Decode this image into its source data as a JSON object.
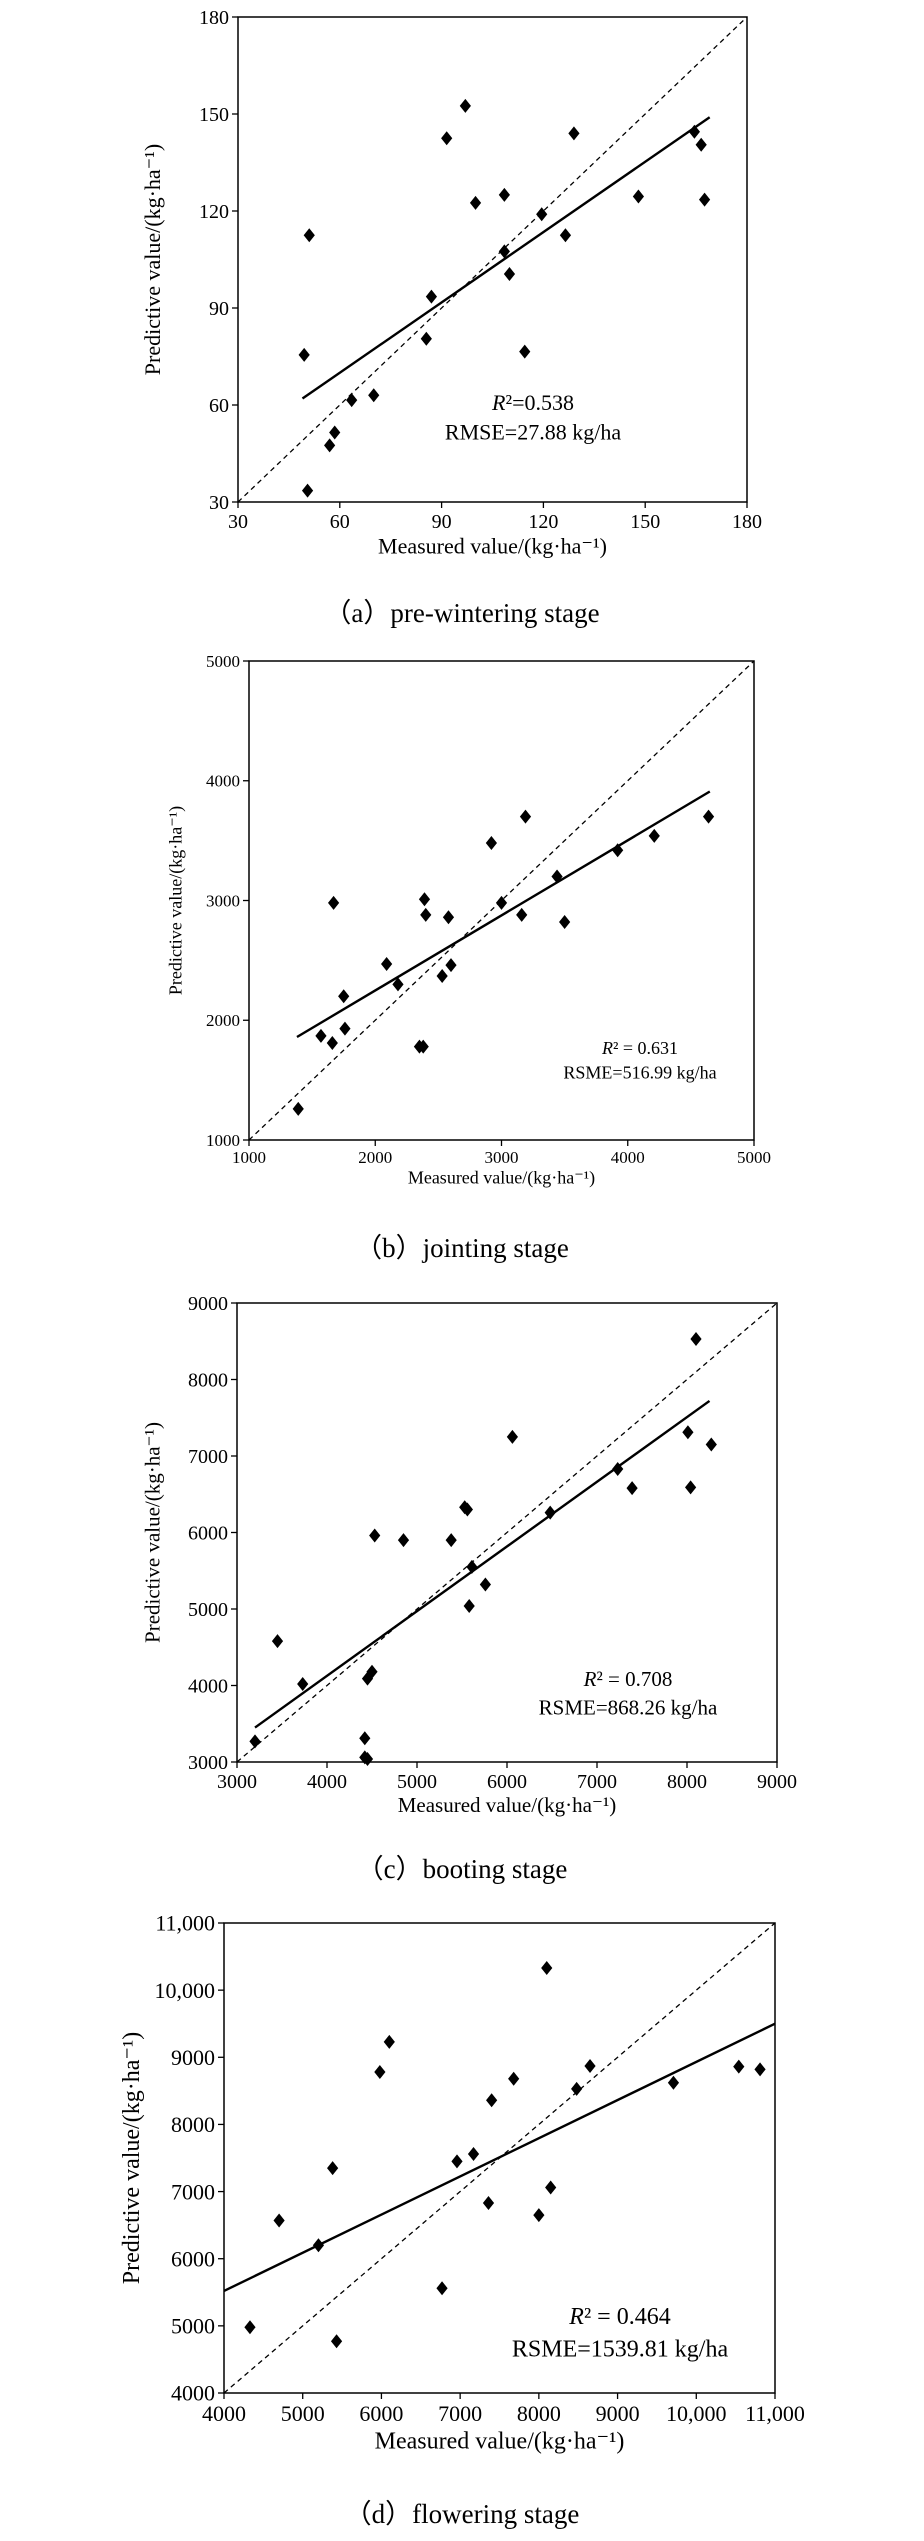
{
  "chart_data": [
    {
      "type": "scatter",
      "caption": "（a）pre-wintering stage",
      "xlabel": "Measured value/(kg·ha⁻¹)",
      "ylabel": "Predictive value/(kg·ha⁻¹)",
      "xlim": [
        30,
        180
      ],
      "ylim": [
        30,
        180
      ],
      "xticks": [
        30,
        60,
        90,
        120,
        150,
        180
      ],
      "yticks": [
        30,
        60,
        90,
        120,
        150,
        180
      ],
      "tick_labels_x": [
        "30",
        "60",
        "90",
        "120",
        "150",
        "180"
      ],
      "tick_labels_y": [
        "30",
        "60",
        "90",
        "120",
        "150",
        "180"
      ],
      "annotation_r2_label": "R",
      "annotation_r2_value": "²=0.538",
      "annotation_err": "RMSE=27.88 kg/ha",
      "fit_line": [
        [
          49,
          62
        ],
        [
          169,
          149
        ]
      ],
      "reference_line": "1:1",
      "points": [
        [
          49.5,
          75.5
        ],
        [
          50.5,
          33.5
        ],
        [
          51,
          112.5
        ],
        [
          57,
          47.5
        ],
        [
          58.5,
          51.5
        ],
        [
          63.5,
          61.5
        ],
        [
          70,
          63
        ],
        [
          85.5,
          80.5
        ],
        [
          87,
          93.5
        ],
        [
          91.5,
          142.5
        ],
        [
          97,
          152.5
        ],
        [
          100,
          122.5
        ],
        [
          108.5,
          125
        ],
        [
          108.5,
          107.5
        ],
        [
          110,
          100.5
        ],
        [
          114.5,
          76.5
        ],
        [
          119.5,
          119
        ],
        [
          126.5,
          112.5
        ],
        [
          129,
          144
        ],
        [
          148,
          124.5
        ],
        [
          164.5,
          144.5
        ],
        [
          166.5,
          140.5
        ],
        [
          167.5,
          123.5
        ]
      ]
    },
    {
      "type": "scatter",
      "caption": "（b）jointing stage",
      "xlabel": "Measured value/(kg·ha⁻¹)",
      "ylabel": "Predictive value/(kg·ha⁻¹)",
      "xlim": [
        1000,
        5000
      ],
      "ylim": [
        1000,
        5000
      ],
      "xticks": [
        1000,
        2000,
        3000,
        4000,
        5000
      ],
      "yticks": [
        1000,
        2000,
        3000,
        4000,
        5000
      ],
      "tick_labels_x": [
        "1000",
        "2000",
        "3000",
        "4000",
        "5000"
      ],
      "tick_labels_y": [
        "1000",
        "2000",
        "3000",
        "4000",
        "5000"
      ],
      "annotation_r2_label": "R",
      "annotation_r2_value": "² = 0.631",
      "annotation_err": "RSME=516.99 kg/ha",
      "fit_line": [
        [
          1380,
          1860
        ],
        [
          4650,
          3910
        ]
      ],
      "reference_line": "1:1",
      "points": [
        [
          1390,
          1260
        ],
        [
          1570,
          1870
        ],
        [
          1660,
          1810
        ],
        [
          1670,
          2980
        ],
        [
          1750,
          2200
        ],
        [
          1760,
          1930
        ],
        [
          2090,
          2470
        ],
        [
          2180,
          2300
        ],
        [
          2350,
          1780
        ],
        [
          2380,
          1780
        ],
        [
          2390,
          3010
        ],
        [
          2400,
          2880
        ],
        [
          2530,
          2370
        ],
        [
          2580,
          2860
        ],
        [
          2600,
          2460
        ],
        [
          2920,
          3480
        ],
        [
          3000,
          2980
        ],
        [
          3160,
          2880
        ],
        [
          3190,
          3700
        ],
        [
          3440,
          3200
        ],
        [
          3500,
          2820
        ],
        [
          3920,
          3420
        ],
        [
          4210,
          3540
        ],
        [
          4640,
          3700
        ]
      ]
    },
    {
      "type": "scatter",
      "caption": "（c）booting stage",
      "xlabel": "Measured value/(kg·ha⁻¹)",
      "ylabel": "Predictive value/(kg·ha⁻¹)",
      "xlim": [
        3000,
        9000
      ],
      "ylim": [
        3000,
        9000
      ],
      "xticks": [
        3000,
        4000,
        5000,
        6000,
        7000,
        8000,
        9000
      ],
      "yticks": [
        3000,
        4000,
        5000,
        6000,
        7000,
        8000,
        9000
      ],
      "tick_labels_x": [
        "3000",
        "4000",
        "5000",
        "6000",
        "7000",
        "8000",
        "9000"
      ],
      "tick_labels_y": [
        "3000",
        "4000",
        "5000",
        "6000",
        "7000",
        "8000",
        "9000"
      ],
      "annotation_r2_label": "R",
      "annotation_r2_value": "² = 0.708",
      "annotation_err": "RSME=868.26 kg/ha",
      "fit_line": [
        [
          3200,
          3450
        ],
        [
          8250,
          7720
        ]
      ],
      "reference_line": "1:1",
      "points": [
        [
          3200,
          3270
        ],
        [
          3450,
          4580
        ],
        [
          3730,
          4020
        ],
        [
          4420,
          3310
        ],
        [
          4420,
          3060
        ],
        [
          4450,
          3040
        ],
        [
          4450,
          4090
        ],
        [
          4500,
          4180
        ],
        [
          4530,
          5960
        ],
        [
          4850,
          5900
        ],
        [
          5380,
          5900
        ],
        [
          5530,
          6330
        ],
        [
          5560,
          6300
        ],
        [
          5580,
          5040
        ],
        [
          5610,
          5550
        ],
        [
          5760,
          5320
        ],
        [
          6060,
          7250
        ],
        [
          6480,
          6260
        ],
        [
          7230,
          6830
        ],
        [
          7390,
          6580
        ],
        [
          8010,
          7310
        ],
        [
          8040,
          6590
        ],
        [
          8100,
          8530
        ],
        [
          8270,
          7150
        ]
      ]
    },
    {
      "type": "scatter",
      "caption": "（d）flowering stage",
      "xlabel": "Measured value/(kg·ha⁻¹)",
      "ylabel": "Predictive value/(kg·ha⁻¹)",
      "xlim": [
        4000,
        11000
      ],
      "ylim": [
        4000,
        11000
      ],
      "xticks": [
        4000,
        5000,
        6000,
        7000,
        8000,
        9000,
        10000,
        11000
      ],
      "yticks": [
        4000,
        5000,
        6000,
        7000,
        8000,
        9000,
        10000,
        11000
      ],
      "tick_labels_x": [
        "4000",
        "5000",
        "6000",
        "7000",
        "8000",
        "9000",
        "10,000",
        "11,000"
      ],
      "tick_labels_y": [
        "4000",
        "5000",
        "6000",
        "7000",
        "8000",
        "9000",
        "10,000",
        "11,000"
      ],
      "annotation_r2_label": "R",
      "annotation_r2_value": "² = 0.464",
      "annotation_err": "RSME=1539.81 kg/ha",
      "fit_line": [
        [
          4000,
          5520
        ],
        [
          11000,
          9500
        ]
      ],
      "reference_line": "1:1",
      "points": [
        [
          4330,
          4980
        ],
        [
          4700,
          6570
        ],
        [
          5200,
          6200
        ],
        [
          5380,
          7350
        ],
        [
          5430,
          4770
        ],
        [
          5980,
          8780
        ],
        [
          6100,
          9230
        ],
        [
          6770,
          5560
        ],
        [
          6960,
          7450
        ],
        [
          7170,
          7560
        ],
        [
          7360,
          6830
        ],
        [
          7400,
          8360
        ],
        [
          7680,
          8680
        ],
        [
          8000,
          6650
        ],
        [
          8100,
          10330
        ],
        [
          8150,
          7060
        ],
        [
          8480,
          8530
        ],
        [
          8650,
          8870
        ],
        [
          9710,
          8620
        ],
        [
          10540,
          8860
        ],
        [
          10810,
          8820
        ]
      ]
    }
  ]
}
